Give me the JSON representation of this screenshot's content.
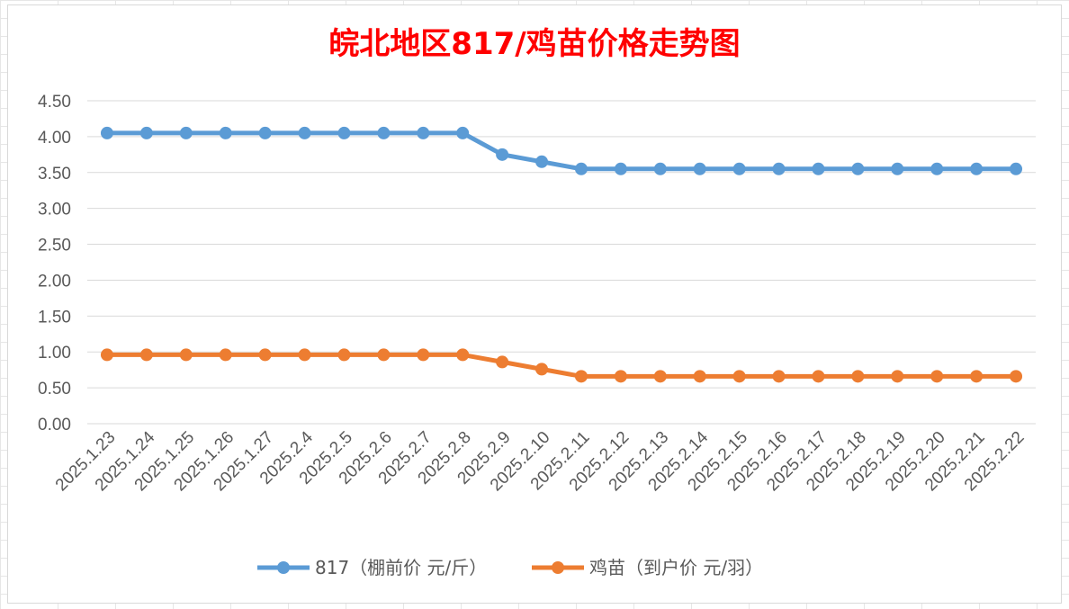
{
  "chart_data": {
    "type": "line",
    "title": "皖北地区817/鸡苗价格走势图",
    "title_color": "#ff0000",
    "categories": [
      "2025.1.23",
      "2025.1.24",
      "2025.1.25",
      "2025.1.26",
      "2025.1.27",
      "2025.2.4",
      "2025.2.5",
      "2025.2.6",
      "2025.2.7",
      "2025.2.8",
      "2025.2.9",
      "2025.2.10",
      "2025.2.11",
      "2025.2.12",
      "2025.2.13",
      "2025.2.14",
      "2025.2.15",
      "2025.2.16",
      "2025.2.17",
      "2025.2.18",
      "2025.2.19",
      "2025.2.20",
      "2025.2.21",
      "2025.2.22"
    ],
    "y_ticks": [
      "0.00",
      "0.50",
      "1.00",
      "1.50",
      "2.00",
      "2.50",
      "3.00",
      "3.50",
      "4.00",
      "4.50"
    ],
    "ylim": [
      0,
      4.5
    ],
    "grid": true,
    "legend_position": "bottom",
    "series": [
      {
        "name": "817（棚前价 元/斤）",
        "color": "#5b9bd5",
        "values": [
          4.05,
          4.05,
          4.05,
          4.05,
          4.05,
          4.05,
          4.05,
          4.05,
          4.05,
          4.05,
          3.75,
          3.65,
          3.55,
          3.55,
          3.55,
          3.55,
          3.55,
          3.55,
          3.55,
          3.55,
          3.55,
          3.55,
          3.55,
          3.55
        ]
      },
      {
        "name": "鸡苗（到户价 元/羽）",
        "color": "#ed7d31",
        "values": [
          0.96,
          0.96,
          0.96,
          0.96,
          0.96,
          0.96,
          0.96,
          0.96,
          0.96,
          0.96,
          0.86,
          0.76,
          0.66,
          0.66,
          0.66,
          0.66,
          0.66,
          0.66,
          0.66,
          0.66,
          0.66,
          0.66,
          0.66,
          0.66
        ]
      }
    ]
  }
}
